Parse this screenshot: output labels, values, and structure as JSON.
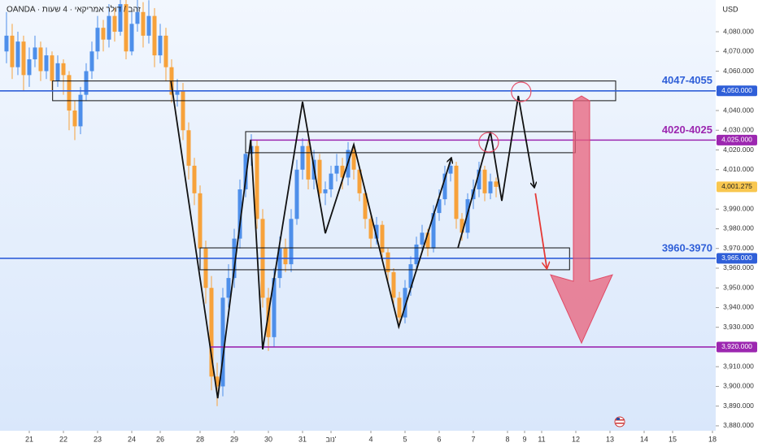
{
  "chart_data": {
    "type": "candlestick",
    "header": "OANDA · זהב / דולר אמריקאי · 4 שעות",
    "currency": "USD",
    "up_color": "#4e8fea",
    "down_color": "#f7a23b",
    "xlim": [
      -5.14,
      120.57
    ],
    "ylim": [
      3877.5,
      4096.1
    ],
    "xticks": [
      {
        "value": 0,
        "label": "21"
      },
      {
        "value": 6,
        "label": "22"
      },
      {
        "value": 12,
        "label": "23"
      },
      {
        "value": 18,
        "label": "24"
      },
      {
        "value": 23,
        "label": "26"
      },
      {
        "value": 30,
        "label": "28"
      },
      {
        "value": 36,
        "label": "29"
      },
      {
        "value": 42,
        "label": "30"
      },
      {
        "value": 48,
        "label": "31"
      },
      {
        "value": 53,
        "label": "נוב'"
      },
      {
        "value": 60,
        "label": "4"
      },
      {
        "value": 66,
        "label": "5"
      },
      {
        "value": 72,
        "label": "6"
      },
      {
        "value": 78,
        "label": "7"
      },
      {
        "value": 84,
        "label": "8"
      },
      {
        "value": 87,
        "label": "9"
      },
      {
        "value": 90,
        "label": "11"
      },
      {
        "value": 96,
        "label": "12"
      },
      {
        "value": 102,
        "label": "13"
      },
      {
        "value": 108,
        "label": "14"
      },
      {
        "value": 113,
        "label": "15"
      },
      {
        "value": 120,
        "label": "18"
      }
    ],
    "yticks": [
      {
        "value": 3880,
        "label": "3,880.000"
      },
      {
        "value": 3890,
        "label": "3,890.000"
      },
      {
        "value": 3900,
        "label": "3,900.000"
      },
      {
        "value": 3910,
        "label": "3,910.000"
      },
      {
        "value": 3930,
        "label": "3,930.000"
      },
      {
        "value": 3940,
        "label": "3,940.000"
      },
      {
        "value": 3950,
        "label": "3,950.000"
      },
      {
        "value": 3960,
        "label": "3,960.000"
      },
      {
        "value": 3970,
        "label": "3,970.000"
      },
      {
        "value": 3980,
        "label": "3,980.000"
      },
      {
        "value": 3990,
        "label": "3,990.000"
      },
      {
        "value": 4010,
        "label": "4,010.000"
      },
      {
        "value": 4020,
        "label": "4,020.000"
      },
      {
        "value": 4030,
        "label": "4,030.000"
      },
      {
        "value": 4040,
        "label": "4,040.000"
      },
      {
        "value": 4060,
        "label": "4,060.000"
      },
      {
        "value": 4070,
        "label": "4,070.000"
      },
      {
        "value": 4080,
        "label": "4,080.000"
      }
    ],
    "x": [
      -4,
      -3,
      -2,
      -1,
      0,
      1,
      2,
      3,
      4,
      5,
      6,
      7,
      8,
      9,
      10,
      11,
      12,
      13,
      14,
      15,
      16,
      17,
      18,
      19,
      20,
      21,
      22,
      23,
      24,
      25,
      26,
      27,
      28,
      29,
      30,
      31,
      32,
      33,
      34,
      35,
      36,
      37,
      38,
      39,
      40,
      41,
      42,
      43,
      44,
      45,
      46,
      47,
      48,
      49,
      50,
      51,
      52,
      53,
      54,
      55,
      56,
      57,
      58,
      59,
      60,
      61,
      62,
      63,
      64,
      65,
      66,
      67,
      68,
      69,
      70,
      71,
      72,
      73,
      74,
      75,
      76,
      77,
      78,
      79,
      80,
      81,
      82
    ],
    "open": [
      4070,
      4078,
      4062,
      4075,
      4058,
      4066,
      4072,
      4060,
      4068,
      4055,
      4064,
      4058,
      4040,
      4032,
      4048,
      4060,
      4070,
      4082,
      4076,
      4088,
      4080,
      4094,
      4070,
      4084,
      4090,
      4078,
      4088,
      4068,
      4078,
      4062,
      4048,
      4050,
      4030,
      4012,
      3998,
      3970,
      3950,
      3905,
      3900,
      3945,
      3955,
      3975,
      4000,
      4018,
      4022,
      3985,
      3945,
      3925,
      3955,
      3970,
      3962,
      3985,
      4010,
      4022,
      4005,
      4015,
      3998,
      4000,
      4008,
      4012,
      4006,
      4020,
      4010,
      3998,
      3985,
      3975,
      3982,
      3968,
      3958,
      3945,
      3935,
      3950,
      3962,
      3972,
      3978,
      3970,
      3988,
      3995,
      4008,
      4012,
      3985,
      3978,
      3995,
      4000,
      4010,
      3998,
      4004
    ],
    "high": [
      4090,
      4084,
      4080,
      4078,
      4072,
      4078,
      4075,
      4072,
      4070,
      4068,
      4066,
      4060,
      4045,
      4052,
      4064,
      4075,
      4088,
      4086,
      4094,
      4092,
      4100,
      4098,
      4090,
      4100,
      4095,
      4096,
      4092,
      4084,
      4082,
      4066,
      4056,
      4054,
      4034,
      4016,
      4002,
      3974,
      3956,
      3912,
      3950,
      3962,
      3980,
      4005,
      4026,
      4028,
      4025,
      3990,
      3950,
      3960,
      3976,
      3975,
      3990,
      4015,
      4026,
      4025,
      4020,
      4018,
      4004,
      4012,
      4018,
      4016,
      4024,
      4022,
      4012,
      4000,
      3988,
      3986,
      3984,
      3970,
      3960,
      3948,
      3954,
      3966,
      3976,
      3982,
      3980,
      3992,
      4000,
      4012,
      4016,
      4014,
      3988,
      3998,
      4005,
      4014,
      4012,
      4008,
      4006
    ],
    "low": [
      4064,
      4056,
      4058,
      4050,
      4052,
      4062,
      4055,
      4056,
      4050,
      4052,
      4048,
      4030,
      4025,
      4028,
      4045,
      4056,
      4066,
      4070,
      4072,
      4075,
      4078,
      4066,
      4068,
      4080,
      4072,
      4074,
      4062,
      4064,
      4055,
      4044,
      4042,
      4025,
      4005,
      3992,
      3965,
      3942,
      3898,
      3890,
      3895,
      3940,
      3950,
      3970,
      3996,
      4012,
      3980,
      3940,
      3918,
      3920,
      3950,
      3958,
      3958,
      3982,
      4005,
      4000,
      4000,
      3994,
      3992,
      3996,
      4004,
      4000,
      4002,
      4005,
      3994,
      3980,
      3970,
      3972,
      3964,
      3952,
      3940,
      3930,
      3932,
      3946,
      3958,
      3968,
      3966,
      3968,
      3984,
      3992,
      4004,
      3980,
      3974,
      3975,
      3990,
      3996,
      3994,
      3995,
      3996
    ],
    "close": [
      4078,
      4062,
      4075,
      4058,
      4066,
      4072,
      4060,
      4068,
      4055,
      4064,
      4058,
      4040,
      4032,
      4048,
      4060,
      4070,
      4082,
      4076,
      4088,
      4080,
      4094,
      4070,
      4084,
      4090,
      4078,
      4088,
      4068,
      4078,
      4062,
      4048,
      4050,
      4030,
      4012,
      3998,
      3970,
      3950,
      3905,
      3900,
      3945,
      3955,
      3975,
      4000,
      4018,
      4022,
      3985,
      3945,
      3925,
      3955,
      3970,
      3962,
      3985,
      4010,
      4022,
      4005,
      4015,
      3998,
      4000,
      4008,
      4012,
      4006,
      4020,
      4010,
      3998,
      3985,
      3975,
      3982,
      3968,
      3958,
      3945,
      3935,
      3950,
      3962,
      3972,
      3978,
      3970,
      3988,
      3995,
      4008,
      4012,
      3985,
      3978,
      3995,
      4000,
      4010,
      3998,
      4004,
      4001.275
    ],
    "last": {
      "value": 4001.275,
      "label": "4,001.275",
      "color": "#f9c74f"
    },
    "levels": [
      {
        "price": 4050,
        "label": "4,050.000",
        "zone": "4047-4055",
        "color": "#2f5fd8",
        "from": -5.14
      },
      {
        "price": 4025,
        "label": "4,025.000",
        "zone": "4020-4025",
        "color": "#9c27b0",
        "from": 38.9
      },
      {
        "price": 3965,
        "label": "3,965.000",
        "zone": "3960-3970",
        "color": "#2f5fd8",
        "from": -5.14
      },
      {
        "price": 3920,
        "label": "3,920.000",
        "color": "#9c27b0",
        "from": 31.7
      }
    ],
    "zones": [
      {
        "low": 4045,
        "high": 4055,
        "from": 4.1,
        "to": 103
      },
      {
        "low": 4018.6,
        "high": 4029.3,
        "from": 38,
        "to": 95.9
      },
      {
        "low": 3959.2,
        "high": 3970.3,
        "from": 30,
        "to": 94.9
      }
    ],
    "drawings": [
      {
        "x": [
          24.9,
          33.1,
          38.9,
          41,
          48,
          52,
          57,
          64.9,
          74.1
        ],
        "y": [
          4054.8,
          3894,
          4025.2,
          3918.8,
          4044.5,
          3977.7,
          4022.7,
          3930.3,
          4015.7
        ],
        "color": "#111111"
      },
      {
        "x": [
          75.3,
          81,
          83,
          85.9,
          88.7
        ],
        "y": [
          3970.3,
          4029.3,
          3994.2,
          4047.4,
          4001.2
        ],
        "color": "#111111"
      },
      {
        "x": [
          88.9,
          90.9
        ],
        "y": [
          3998,
          3960
        ],
        "color": "#e53935"
      }
    ],
    "circles": [
      {
        "x": 86.4,
        "y": 4049.5
      },
      {
        "x": 80.7,
        "y": 4023.9
      }
    ],
    "arrow": {
      "x": 97,
      "from": 4047.4,
      "to": 3922,
      "color": "#e8607a"
    }
  }
}
